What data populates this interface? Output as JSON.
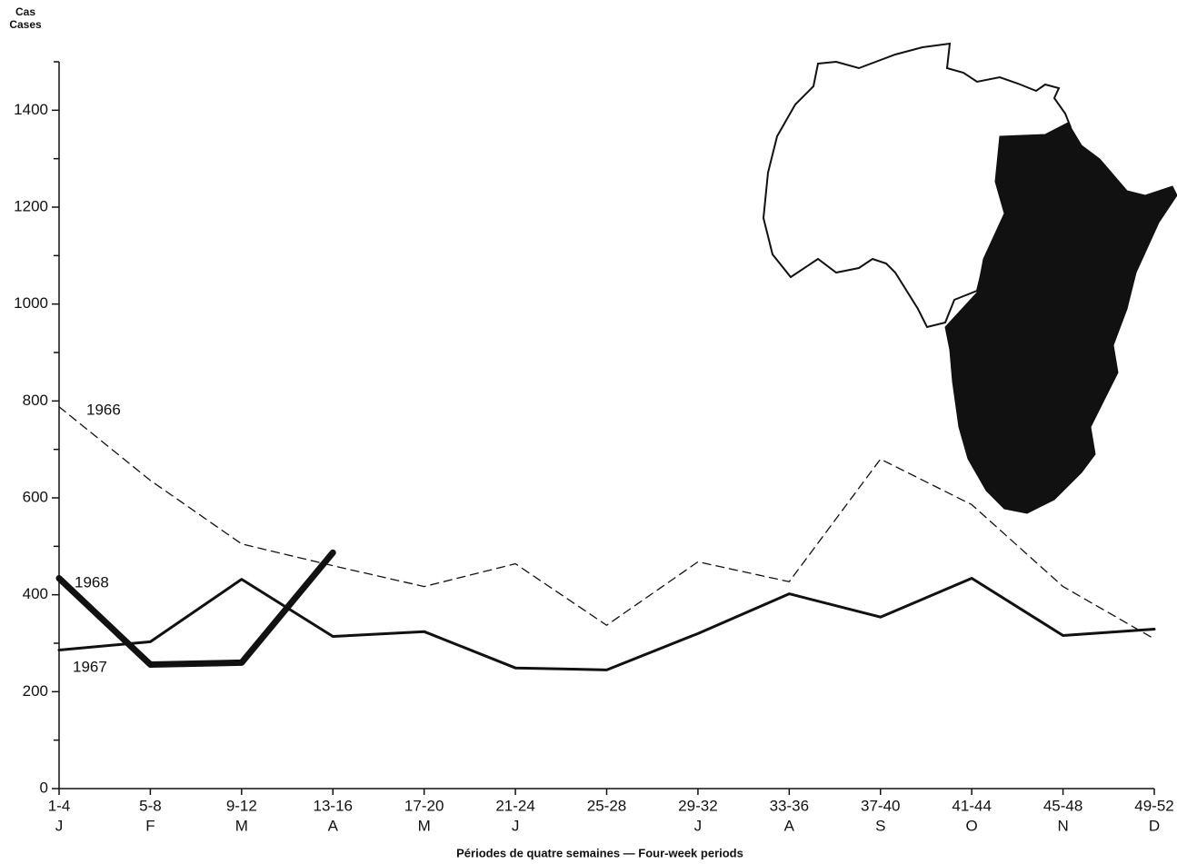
{
  "chart_data": {
    "type": "line",
    "y_label_lines": [
      "Cas",
      "Cases"
    ],
    "x_label": "Périodes de quatre semaines — Four-week periods",
    "categories": [
      "1-4",
      "5-8",
      "9-12",
      "13-16",
      "17-20",
      "21-24",
      "25-28",
      "29-32",
      "33-36",
      "37-40",
      "41-44",
      "45-48",
      "49-52"
    ],
    "month_labels": [
      "J",
      "F",
      "M",
      "A",
      "M",
      "J",
      null,
      "J",
      "A",
      "S",
      "O",
      "N",
      "D"
    ],
    "series": [
      {
        "name": "1966",
        "color": "#111111",
        "style": "dashed",
        "width": 1.3,
        "values": [
          788,
          636,
          505,
          460,
          417,
          464,
          337,
          468,
          427,
          680,
          586,
          417,
          309
        ]
      },
      {
        "name": "1967",
        "color": "#111111",
        "style": "solid",
        "width": 3,
        "values": [
          286,
          303,
          432,
          314,
          324,
          249,
          245,
          320,
          402,
          354,
          434,
          316,
          329
        ]
      },
      {
        "name": "1968",
        "color": "#111111",
        "style": "solid",
        "width": 7,
        "values": [
          434,
          256,
          260,
          487,
          null,
          null,
          null,
          null,
          null,
          null,
          null,
          null,
          null
        ]
      }
    ],
    "ylim": [
      0,
      1500
    ],
    "yticks": [
      0,
      200,
      400,
      600,
      800,
      1000,
      1200,
      1400
    ],
    "minor_yticks": [
      100,
      300,
      500,
      700,
      900,
      1100,
      1300,
      1500
    ]
  }
}
